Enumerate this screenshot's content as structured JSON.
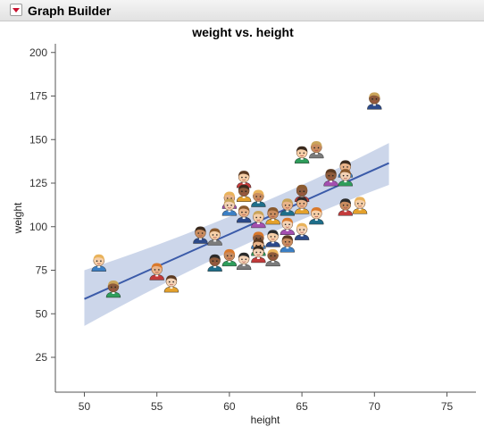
{
  "app": {
    "title": "Graph Builder",
    "disclosure_icon": "red-triangle-menu-icon"
  },
  "chart_data": {
    "type": "scatter",
    "title": "weight vs. height",
    "xlabel": "height",
    "ylabel": "weight",
    "xlim": [
      48,
      77
    ],
    "ylim": [
      5,
      205
    ],
    "xticks": [
      50,
      55,
      60,
      65,
      70,
      75
    ],
    "yticks": [
      25,
      50,
      75,
      100,
      125,
      150,
      175,
      200
    ],
    "grid": false,
    "marker": "person-face-icon",
    "fit": {
      "type": "linear",
      "x_range": [
        50,
        71
      ],
      "y_start": 58.5,
      "y_end": 136.5,
      "band_lower": [
        43,
        124
      ],
      "band_upper": [
        75,
        148
      ],
      "line_color": "#3b5ba9",
      "band_color": "#c7d2e8"
    },
    "points": [
      {
        "x": 51,
        "y": 79
      },
      {
        "x": 52,
        "y": 64
      },
      {
        "x": 55,
        "y": 74
      },
      {
        "x": 56,
        "y": 67
      },
      {
        "x": 58,
        "y": 95
      },
      {
        "x": 59,
        "y": 94
      },
      {
        "x": 59,
        "y": 79
      },
      {
        "x": 60,
        "y": 115
      },
      {
        "x": 60,
        "y": 111
      },
      {
        "x": 60,
        "y": 82
      },
      {
        "x": 61,
        "y": 127
      },
      {
        "x": 61,
        "y": 119
      },
      {
        "x": 61,
        "y": 107
      },
      {
        "x": 61,
        "y": 80
      },
      {
        "x": 62,
        "y": 116
      },
      {
        "x": 62,
        "y": 104
      },
      {
        "x": 62,
        "y": 92
      },
      {
        "x": 62,
        "y": 88
      },
      {
        "x": 62,
        "y": 84
      },
      {
        "x": 63,
        "y": 106
      },
      {
        "x": 63,
        "y": 93
      },
      {
        "x": 63,
        "y": 82
      },
      {
        "x": 64,
        "y": 111
      },
      {
        "x": 64,
        "y": 100
      },
      {
        "x": 64,
        "y": 90
      },
      {
        "x": 65,
        "y": 141
      },
      {
        "x": 65,
        "y": 119
      },
      {
        "x": 65,
        "y": 112
      },
      {
        "x": 65,
        "y": 97
      },
      {
        "x": 66,
        "y": 144
      },
      {
        "x": 66,
        "y": 106
      },
      {
        "x": 67,
        "y": 128
      },
      {
        "x": 68,
        "y": 133
      },
      {
        "x": 68,
        "y": 128
      },
      {
        "x": 68,
        "y": 111
      },
      {
        "x": 69,
        "y": 112
      },
      {
        "x": 70,
        "y": 172
      }
    ]
  }
}
